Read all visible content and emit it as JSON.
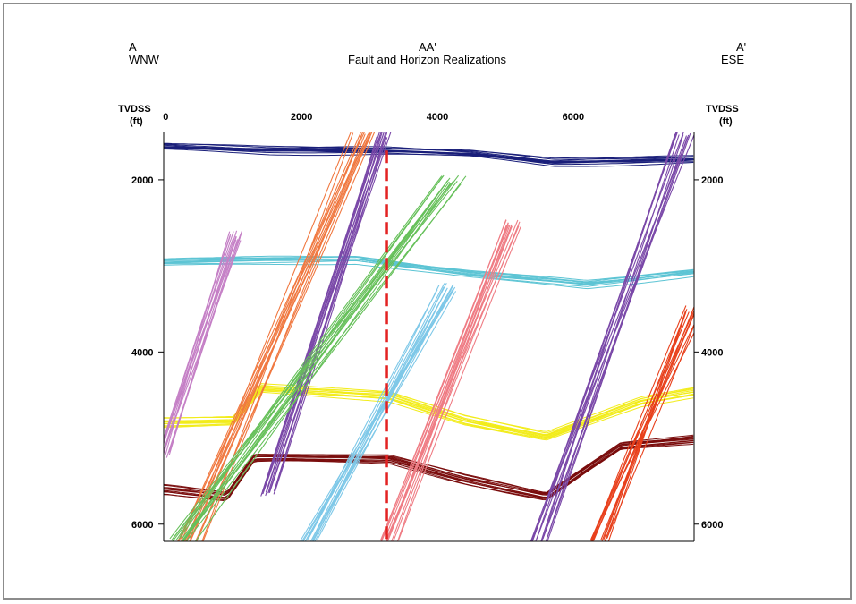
{
  "header": {
    "left_top": "A",
    "left_bottom": "WNW",
    "center_top": "AA'",
    "center_bottom": "Fault and Horizon Realizations",
    "right_top": "A'",
    "right_bottom": "ESE"
  },
  "axes": {
    "left_unit_1": "TVDSS",
    "left_unit_2": "(ft)",
    "right_unit_1": "TVDSS",
    "right_unit_2": "(ft)"
  },
  "colors": {
    "navy_horizon": "#1a1f7a",
    "cyan_horizon": "#5cc4d4",
    "yellow_horizon": "#f2ec1a",
    "maroon_horizon": "#7a0c0c",
    "pink_fault": "#c580c6",
    "orange_fault": "#f07840",
    "purple_fault": "#7a48a8",
    "green_fault": "#66c05a",
    "lightblue_fault": "#7ec8e8",
    "salmon_fault": "#ef7c84",
    "red_fault": "#e8401c",
    "section_marker": "#e32222"
  },
  "chart_data": {
    "type": "line",
    "title": "Fault and Horizon Realizations",
    "xlabel": "",
    "ylabel": "TVDSS (ft)",
    "xlim": [
      -30,
      7780
    ],
    "ylim": [
      6200,
      1450
    ],
    "x_ticks": [
      0,
      2000,
      4000,
      6000
    ],
    "y_ticks": [
      2000,
      4000,
      6000
    ],
    "y_inverted": true,
    "grid": false,
    "section_marker_x": 3250,
    "horizons": [
      {
        "color": "navy",
        "x": [
          0,
          1500,
          3250,
          4500,
          5700,
          6800,
          7780
        ],
        "y": [
          1620,
          1660,
          1660,
          1700,
          1800,
          1780,
          1760
        ],
        "spread": 90
      },
      {
        "color": "cyan",
        "x": [
          0,
          1600,
          2800,
          3300,
          4500,
          6200,
          7780
        ],
        "y": [
          2960,
          2940,
          2930,
          2980,
          3100,
          3220,
          3080
        ],
        "spread": 90
      },
      {
        "color": "yellow",
        "x": [
          0,
          1000,
          1400,
          3300,
          4400,
          5600,
          7000,
          7780
        ],
        "y": [
          4820,
          4800,
          4420,
          4520,
          4790,
          4980,
          4580,
          4470
        ],
        "spread": 120
      },
      {
        "color": "maroon",
        "x": [
          0,
          900,
          1300,
          3300,
          4400,
          5600,
          6700,
          7780
        ],
        "y": [
          5600,
          5680,
          5230,
          5250,
          5480,
          5680,
          5100,
          5020
        ],
        "spread": 100
      }
    ],
    "faults": [
      {
        "color": "pink",
        "top": [
          1050,
          2650
        ],
        "bottom": [
          -30,
          5200
        ],
        "width": 220
      },
      {
        "color": "orange",
        "top": [
          2920,
          1450
        ],
        "bottom": [
          350,
          6200
        ],
        "width": 380
      },
      {
        "color": "purple",
        "top": [
          3200,
          1450
        ],
        "bottom": [
          1500,
          5650
        ],
        "width": 260
      },
      {
        "color": "green",
        "top": [
          4250,
          2000
        ],
        "bottom": [
          250,
          6200
        ],
        "width": 380
      },
      {
        "color": "lightblue",
        "top": [
          4150,
          3250
        ],
        "bottom": [
          2100,
          6200
        ],
        "width": 300
      },
      {
        "color": "salmon",
        "top": [
          5150,
          2500
        ],
        "bottom": [
          3300,
          6200
        ],
        "width": 280
      },
      {
        "color": "purple",
        "top": [
          7650,
          1450
        ],
        "bottom": [
          5500,
          6200
        ],
        "width": 300
      },
      {
        "color": "red",
        "top": [
          7780,
          3500
        ],
        "bottom": [
          6400,
          6200
        ],
        "width": 320
      }
    ]
  }
}
